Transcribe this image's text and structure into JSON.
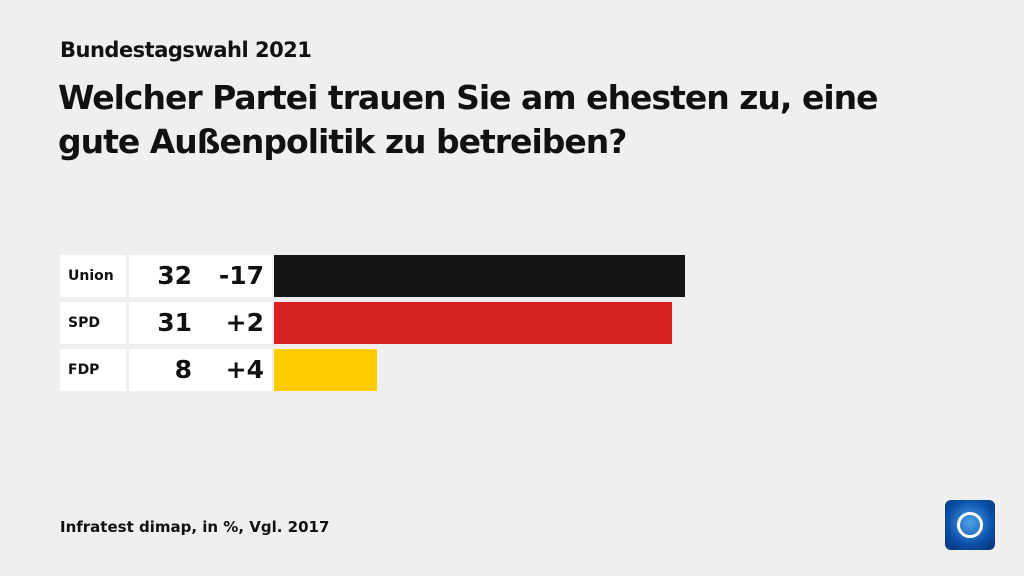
{
  "kicker": "Bundestagswahl 2021",
  "title": "Welcher Partei trauen Sie am ehesten zu, eine gute Außenpolitik zu betreiben?",
  "source": "Infratest dimap, in %, Vgl. 2017",
  "logo": "ARD Das Erste",
  "chart_data": {
    "type": "bar",
    "orientation": "horizontal",
    "categories": [
      "Union",
      "SPD",
      "FDP"
    ],
    "values": [
      32,
      31,
      8
    ],
    "changes": [
      "-17",
      "+2",
      "+4"
    ],
    "colors": [
      "#151515",
      "#d82121",
      "#ffcc00"
    ]
  }
}
